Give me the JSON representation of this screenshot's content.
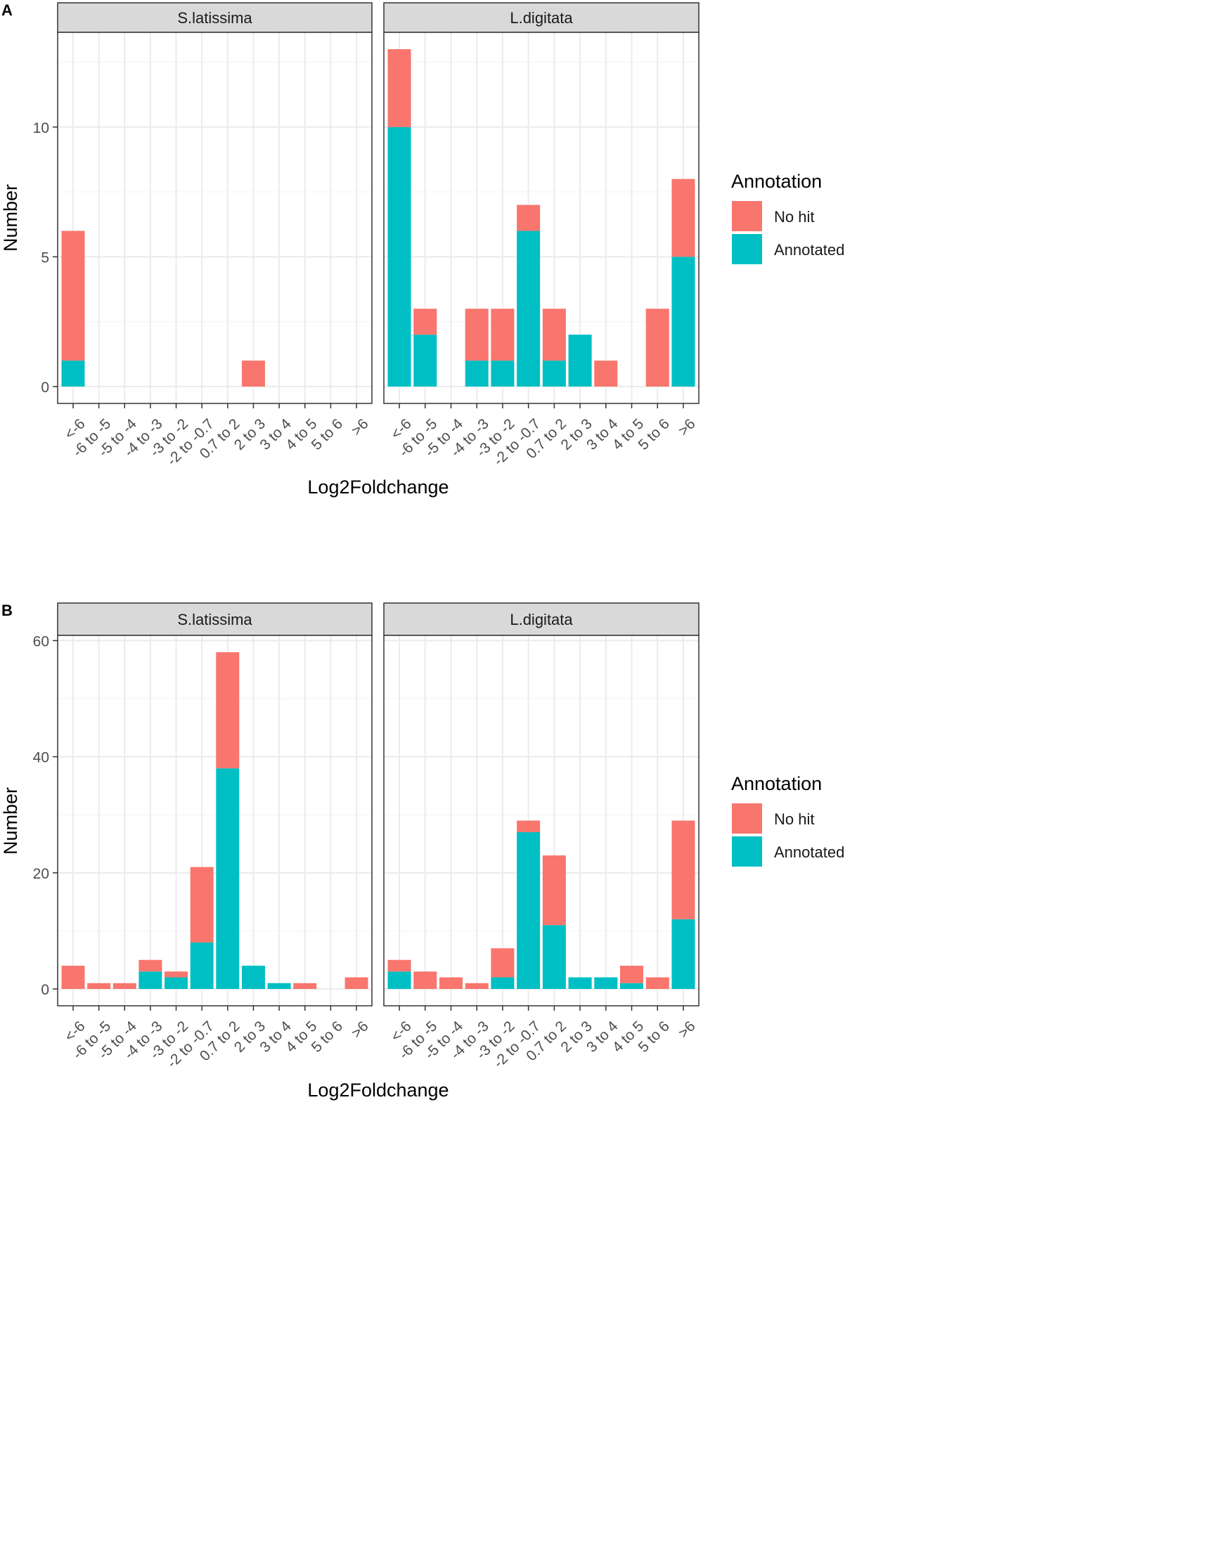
{
  "colors": {
    "no_hit": "#F8766D",
    "annotated": "#00BFC4",
    "strip_fill": "#D9D9D9",
    "grid_major": "#EBEBEB",
    "grid_minor": "#F5F5F5",
    "panel_border": "#333333",
    "axis_text": "#4D4D4D",
    "title_text": "#000000"
  },
  "chart_data": [
    {
      "type": "bar",
      "stacked": true,
      "panel_label": "A",
      "xlabel": "Log2Foldchange",
      "ylabel": "Number",
      "categories": [
        "<-6",
        "-6 to -5",
        "-5 to -4",
        "-4 to -3",
        "-3 to -2",
        "-2 to -0.7",
        "0.7 to 2",
        "2 to 3",
        "3 to 4",
        "4 to 5",
        "5 to 6",
        ">6"
      ],
      "yticks": [
        0,
        5,
        10
      ],
      "ylim": [
        -0.65,
        13.65
      ],
      "legend": {
        "title": "Annotation",
        "position": "right",
        "entries": [
          {
            "name": "No hit",
            "color_key": "no_hit"
          },
          {
            "name": "Annotated",
            "color_key": "annotated"
          }
        ]
      },
      "facets": [
        {
          "title": "S.latissima",
          "series": [
            {
              "name": "Annotated",
              "values": [
                1,
                0,
                0,
                0,
                0,
                0,
                0,
                0,
                0,
                0,
                0,
                0
              ]
            },
            {
              "name": "No hit",
              "values": [
                5,
                0,
                0,
                0,
                0,
                0,
                0,
                1,
                0,
                0,
                0,
                0
              ]
            }
          ]
        },
        {
          "title": "L.digitata",
          "series": [
            {
              "name": "Annotated",
              "values": [
                10,
                2,
                0,
                1,
                1,
                6,
                1,
                2,
                0,
                0,
                0,
                5
              ]
            },
            {
              "name": "No hit",
              "values": [
                3,
                1,
                0,
                2,
                2,
                1,
                2,
                0,
                1,
                0,
                3,
                3
              ]
            }
          ]
        }
      ]
    },
    {
      "type": "bar",
      "stacked": true,
      "panel_label": "B",
      "xlabel": "Log2Foldchange",
      "ylabel": "Number",
      "categories": [
        "<-6",
        "-6 to -5",
        "-5 to -4",
        "-4 to -3",
        "-3 to -2",
        "-2 to -0.7",
        "0.7 to 2",
        "2 to 3",
        "3 to 4",
        "4 to 5",
        "5 to 6",
        ">6"
      ],
      "yticks": [
        0,
        20,
        40,
        60
      ],
      "ylim": [
        -2.9,
        60.9
      ],
      "legend": {
        "title": "Annotation",
        "position": "right",
        "entries": [
          {
            "name": "No hit",
            "color_key": "no_hit"
          },
          {
            "name": "Annotated",
            "color_key": "annotated"
          }
        ]
      },
      "facets": [
        {
          "title": "S.latissima",
          "series": [
            {
              "name": "Annotated",
              "values": [
                0,
                0,
                0,
                3,
                2,
                8,
                38,
                4,
                1,
                0,
                0,
                0
              ]
            },
            {
              "name": "No hit",
              "values": [
                4,
                1,
                1,
                2,
                1,
                13,
                20,
                0,
                0,
                1,
                0,
                2
              ]
            }
          ]
        },
        {
          "title": "L.digitata",
          "series": [
            {
              "name": "Annotated",
              "values": [
                3,
                0,
                0,
                0,
                2,
                27,
                11,
                2,
                2,
                1,
                0,
                12
              ]
            },
            {
              "name": "No hit",
              "values": [
                2,
                3,
                2,
                1,
                5,
                2,
                12,
                0,
                0,
                3,
                2,
                17
              ]
            }
          ]
        }
      ]
    }
  ]
}
